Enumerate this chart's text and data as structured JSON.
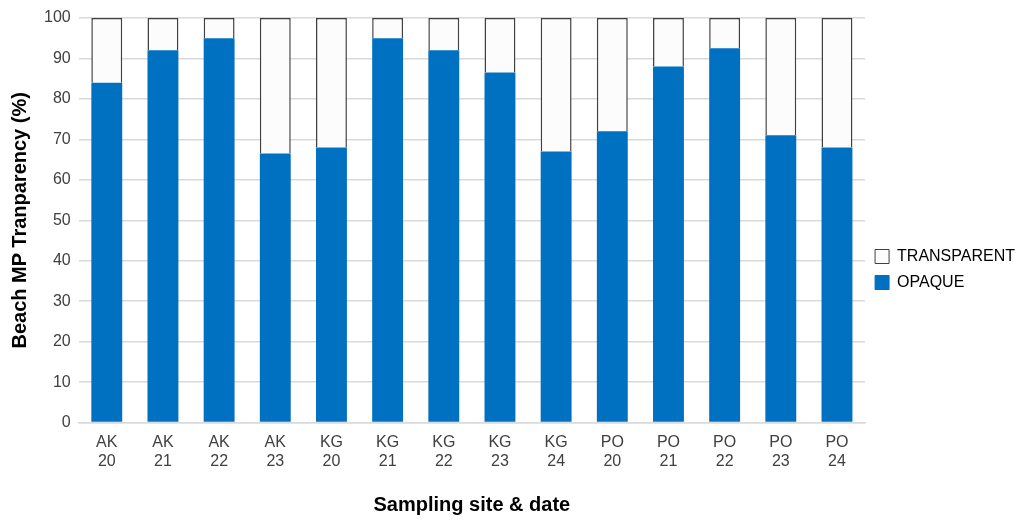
{
  "chart_data": {
    "type": "bar",
    "stacked": true,
    "xlabel": "Sampling site & date",
    "ylabel": "Beach MP Tranparency (%)",
    "categories": [
      "AK 20",
      "AK 21",
      "AK 22",
      "AK 23",
      "KG 20",
      "KG 21",
      "KG 22",
      "KG 23",
      "KG 24",
      "PO 20",
      "PO 21",
      "PO 22",
      "PO 23",
      "PO 24"
    ],
    "series": [
      {
        "name": "OPAQUE",
        "color": "#0070c0",
        "values": [
          84,
          92,
          95,
          66.5,
          68,
          95,
          92,
          86.5,
          67,
          72,
          88,
          92.5,
          71,
          68
        ]
      },
      {
        "name": "TRANSPARENT",
        "color": "#fcfcfc",
        "values": [
          16,
          8,
          5,
          33.5,
          32,
          5,
          8,
          13.5,
          33,
          28,
          12,
          7.5,
          29,
          32
        ]
      }
    ],
    "ylim": [
      0,
      100
    ],
    "yticks": [
      0,
      10,
      20,
      30,
      40,
      50,
      60,
      70,
      80,
      90,
      100
    ],
    "grid": "y",
    "legend": "right"
  }
}
